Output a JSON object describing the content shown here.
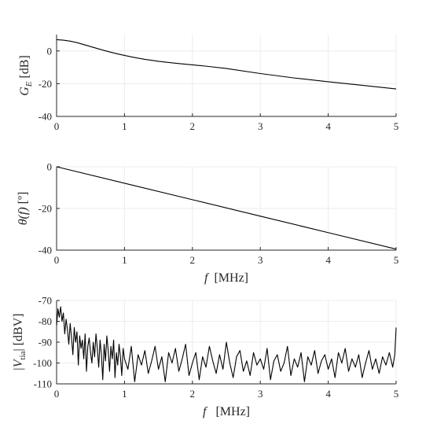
{
  "chart_data": [
    {
      "type": "line",
      "ylabel": "G_E [dB]",
      "xlim": [
        0,
        5
      ],
      "ylim": [
        -40,
        10
      ],
      "xticks": [
        0,
        1,
        2,
        3,
        4,
        5
      ],
      "yticks": [
        0,
        -20,
        -40
      ],
      "grid": true,
      "series": [
        {
          "color": "#000000",
          "x": [
            0,
            0.1,
            0.2,
            0.3,
            0.4,
            0.5,
            0.6,
            0.7,
            0.8,
            0.9,
            1.0,
            1.1,
            1.2,
            1.3,
            1.4,
            1.5,
            1.6,
            1.8,
            2.0,
            2.2,
            2.5,
            3.0,
            3.5,
            4.0,
            4.5,
            5.0
          ],
          "y": [
            6.9,
            6.6,
            6.0,
            5.1,
            3.9,
            2.7,
            1.5,
            0.3,
            -0.8,
            -1.8,
            -2.7,
            -3.6,
            -4.4,
            -5.1,
            -5.7,
            -6.3,
            -6.8,
            -7.7,
            -8.5,
            -9.3,
            -10.7,
            -13.8,
            -16.5,
            -18.8,
            -21.0,
            -23.2
          ]
        }
      ]
    },
    {
      "type": "line",
      "xlabel": "f [MHz]",
      "ylabel": "θ(f) [º]",
      "xlim": [
        0,
        5
      ],
      "ylim": [
        -40,
        0
      ],
      "xticks": [
        0,
        1,
        2,
        3,
        4,
        5
      ],
      "yticks": [
        0,
        -20,
        -40
      ],
      "grid": true,
      "series": [
        {
          "color": "#000000",
          "x": [
            0,
            1,
            2,
            3,
            4,
            5
          ],
          "y": [
            0,
            -7.9,
            -15.8,
            -23.7,
            -31.6,
            -39.5
          ]
        }
      ]
    },
    {
      "type": "line",
      "xlabel": "f [MHz]",
      "ylabel": "|V_tia| [dBV]",
      "xlim": [
        0,
        5
      ],
      "ylim": [
        -110,
        -70
      ],
      "xticks": [
        0,
        1,
        2,
        3,
        4,
        5
      ],
      "yticks": [
        -70,
        -80,
        -90,
        -100,
        -110
      ],
      "grid": true,
      "series": [
        {
          "color": "#000000",
          "x": [
            0,
            0.02,
            0.04,
            0.06,
            0.08,
            0.1,
            0.12,
            0.14,
            0.16,
            0.18,
            0.2,
            0.22,
            0.24,
            0.26,
            0.28,
            0.3,
            0.32,
            0.34,
            0.36,
            0.38,
            0.4,
            0.42,
            0.44,
            0.46,
            0.48,
            0.5,
            0.52,
            0.54,
            0.56,
            0.58,
            0.6,
            0.62,
            0.64,
            0.66,
            0.68,
            0.7,
            0.72,
            0.74,
            0.76,
            0.78,
            0.8,
            0.82,
            0.84,
            0.86,
            0.88,
            0.9,
            0.92,
            0.94,
            0.96,
            0.98,
            1.0,
            1.05,
            1.1,
            1.15,
            1.2,
            1.25,
            1.3,
            1.35,
            1.4,
            1.45,
            1.5,
            1.55,
            1.6,
            1.65,
            1.7,
            1.75,
            1.8,
            1.85,
            1.9,
            1.95,
            2.0,
            2.05,
            2.1,
            2.15,
            2.2,
            2.25,
            2.3,
            2.35,
            2.4,
            2.45,
            2.5,
            2.55,
            2.6,
            2.65,
            2.7,
            2.75,
            2.8,
            2.85,
            2.9,
            2.95,
            3.0,
            3.05,
            3.1,
            3.15,
            3.2,
            3.25,
            3.3,
            3.35,
            3.4,
            3.45,
            3.5,
            3.55,
            3.6,
            3.65,
            3.7,
            3.75,
            3.8,
            3.85,
            3.9,
            3.95,
            4.0,
            4.05,
            4.1,
            4.15,
            4.2,
            4.25,
            4.3,
            4.35,
            4.4,
            4.45,
            4.5,
            4.55,
            4.6,
            4.65,
            4.7,
            4.75,
            4.8,
            4.85,
            4.9,
            4.95,
            4.98,
            5.0
          ],
          "y": [
            -82,
            -74,
            -78,
            -73,
            -80,
            -76,
            -86,
            -79,
            -84,
            -91,
            -81,
            -88,
            -96,
            -83,
            -90,
            -85,
            -101,
            -87,
            -93,
            -89,
            -98,
            -86,
            -104,
            -92,
            -88,
            -95,
            -100,
            -90,
            -97,
            -86,
            -93,
            -102,
            -89,
            -96,
            -108,
            -91,
            -99,
            -87,
            -94,
            -104,
            -92,
            -98,
            -89,
            -107,
            -95,
            -101,
            -91,
            -97,
            -106,
            -93,
            -98,
            -103,
            -92,
            -109,
            -96,
            -101,
            -94,
            -105,
            -99,
            -92,
            -103,
            -97,
            -109,
            -95,
            -100,
            -93,
            -104,
            -98,
            -91,
            -106,
            -100,
            -95,
            -108,
            -97,
            -102,
            -92,
            -99,
            -105,
            -96,
            -103,
            -90,
            -100,
            -107,
            -97,
            -94,
            -104,
            -99,
            -106,
            -95,
            -101,
            -98,
            -103,
            -93,
            -108,
            -99,
            -96,
            -104,
            -100,
            -92,
            -106,
            -98,
            -102,
            -95,
            -109,
            -97,
            -101,
            -94,
            -105,
            -99,
            -96,
            -103,
            -98,
            -107,
            -95,
            -100,
            -93,
            -104,
            -98,
            -102,
            -96,
            -107,
            -100,
            -94,
            -103,
            -98,
            -105,
            -97,
            -101,
            -95,
            -102,
            -96,
            -83
          ]
        }
      ]
    }
  ],
  "panels": [
    {
      "xtick_labels": [
        "0",
        "1",
        "2",
        "3",
        "4",
        "5"
      ],
      "ytick_labels": [
        "0",
        "-20",
        "-40"
      ],
      "ylabel_main": "G",
      "ylabel_sub": "E",
      "ylabel_unit": " [dB]",
      "xlabel_main": "",
      "xlabel_unit": ""
    },
    {
      "xtick_labels": [
        "0",
        "1",
        "2",
        "3",
        "4",
        "5"
      ],
      "ytick_labels": [
        "0",
        "-20",
        "-40"
      ],
      "ylabel_main": "θ(f)",
      "ylabel_sub": "",
      "ylabel_unit": " [º]",
      "xlabel_main": "f",
      "xlabel_unit": "  [MHz]"
    },
    {
      "xtick_labels": [
        "0",
        "1",
        "2",
        "3",
        "4",
        "5"
      ],
      "ytick_labels": [
        "-70",
        "-80",
        "-90",
        "-100",
        "-110"
      ],
      "ylabel_main": "|V",
      "ylabel_sub": "tia",
      "ylabel_unit": "| [dBV]",
      "xlabel_main": "f",
      "xlabel_unit": "   [MHz]"
    }
  ]
}
